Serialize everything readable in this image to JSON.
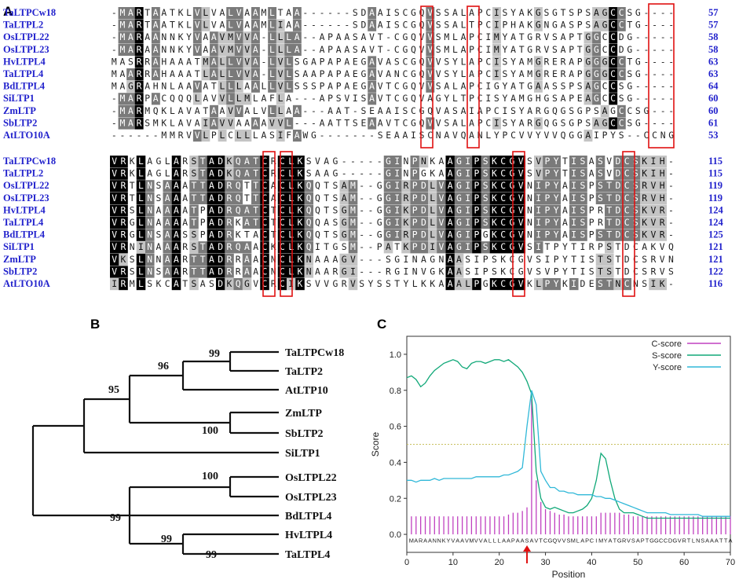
{
  "panels": {
    "a": "A",
    "b": "B",
    "c": "C"
  },
  "alignment": {
    "colors": {
      "identical": "#000000",
      "similar": "#7a7a7a",
      "weak": "#c4c4c4",
      "box": "#e01010"
    },
    "blocks": [
      {
        "names": [
          "TaLTPCw18",
          "TaLTPL2",
          "OsLTPL22",
          "OsLTPL23",
          "HvLTPL4",
          "TaLTPL4",
          "BdLTPL4",
          "SiLTP1",
          "ZmLTP",
          "SbLTP2",
          "AtLTO10A"
        ],
        "ends": [
          "57",
          "57",
          "58",
          "58",
          "63",
          "63",
          "64",
          "60",
          "60",
          "61",
          "53"
        ],
        "seqs": [
          "-MARTAATKLVLVALVAAMLTAA------SDAAISCGQVSSALAPCISYAKGSGTSPSAGCCSG",
          "-MARTAATKLVLVALVAAMLIAA------SDAAISCGQVSSALTPCIPHAKGNGASPSAGCCTG",
          "-MARAANNKYVAAVMVVA-LLLA--APAASAVT-CGQVVSMLAPCIMYATGRVSAPTGGCCDG",
          "-MARAANNKYVAAVMVVA-LLLA--APAASAVT-CGQVVSMLAPCIMYATGRVSAPTGGCCDG",
          "MASRRAHAAATMALLVVA-LVLSGAPAPAEGAVASCGQVVSYLAPCISYAMGRERAPGGGCCTG",
          "MAARRAHAAATLALLVVA-LVLSAAPAPAEGAVANCGQVVSYLAPCISYAMGRERAPGGGCCSG",
          "MAGRAHNLAAVATLLLAALLVLSSSPAPAEGAVTCGQVVSALAPCIGYATGAASSPSAGCCSG",
          "-MARPACQQQLAVVLLMLAFLA---APSVISAVTCGQVAGYLTPCISYAMGHGSAPEAGCCSG",
          "-MARMQKLAVATAAVVALVLLAA---AAT-SEAAISCGQVASAIAPCISYARGQGSGPSAGCCSG",
          "-MARSMKLAVAIAVVAAAAVVL---AATTSEAAVTCGQVVSALAPCISYARGQGSGPSAGCCSG",
          "------MMRVVLPLCLLLASIFAWG-------SEAAISCNAVQANLYPCVVYVVQGGAIPYS--CCNG"
        ]
      },
      {
        "names": [
          "TaLTPCw18",
          "TaLTPL2",
          "OsLTPL22",
          "OsLTPL23",
          "HvLTPL4",
          "TaLTPL4",
          "BdLTPL4",
          "SiLTP1",
          "ZmLTP",
          "SbLTP2",
          "AtLTO10A"
        ],
        "ends": [
          "115",
          "115",
          "119",
          "119",
          "124",
          "124",
          "125",
          "121",
          "121",
          "122",
          "116"
        ],
        "seqs": [
          "VRKLAGLARSTADKQATCRCLKSVAG-----GINPNKAAGIPSKCGVSVPYTISASVDCSKIH",
          "VRKLAGLARSTADKQATCRCLKSAAG-----GINPGKAAGIPSKCGVSVPYTISASVDCSKIH",
          "VRTLNSAAATTADRQTTCACLKQQTSAM--GGIRPDLVAGIPSKCGVNIPYAISPSTDCSRVH",
          "VRTLNSAAATTADRQTTCACLKQQTSAM--GGIRPDLVAGIPSKCGVNIPYAISPSTDCSRVH",
          "VRSLNAAAATPADRQATCTCLKQQTSGM--GGIKPDLVAGIPSKCGVNIPYAISPRTDCSKVR",
          "VRGLNAAAATPADRKATCTCLKQQASGM--GGIKPDLVAGIPSKCGVNIPYAISPRTDCSKVR",
          "VRGLNSAASSPADRKTACTCLKQQTSGM--GGIRPDLVAGIPGKCGVNIPYAISPSTDCSKVR",
          "VRNINAAARSTADRQAACKCLKQITGSM--PATKPDIVAGIPSKCGVSITPYTIRPSTDCAKVQ",
          "VKSLNNAARTTADRRAACNCLKNAAAGV---SGINAGNAASIPSKCGVSIPYTISTSTDCSRVN",
          "VRSLNSAARTTADRRAACNCLKNAARGI---RGINVGKAASIPSKCGVSVPYTISTSTDCSRVS",
          "IRMLSKCATSASDKQGVCRCIKSVVGRVSYSSTYLKKAAALPGKCGVKLPYKIDESTNCNSIK"
        ]
      }
    ]
  },
  "tree": {
    "leaves": [
      "TaLTPCw18",
      "TaLTP2",
      "AtLTP10",
      "ZmLTP",
      "SbLTP2",
      "SiLTP1",
      "OsLTPL22",
      "OsLTPL23",
      "BdLTPL4",
      "HvLTPL4",
      "TaLTPL4"
    ],
    "highlight_leaf": "OsLTPL23",
    "highlight_color": "#e01010",
    "bootstrap": [
      "99",
      "96",
      "95",
      "100",
      "100",
      "99",
      "99",
      "99"
    ]
  },
  "chart_data": {
    "type": "line",
    "title": "",
    "xlabel": "Position",
    "ylabel": "Score",
    "xlim": [
      0,
      70
    ],
    "ylim": [
      -0.1,
      1.1
    ],
    "xticks": [
      "0",
      "10",
      "20",
      "30",
      "40",
      "50",
      "60",
      "70"
    ],
    "yticks": [
      "0.0",
      "0.2",
      "0.4",
      "0.6",
      "0.8",
      "1.0"
    ],
    "threshold": 0.5,
    "legend_position": "top-right",
    "sequence_text": "MARAANNKYVAAVMVVALLLAAPAASAVTCGQVVSMLAPCIMYATGRVSAPTGGCCDGVRTLNSAAATTA",
    "arrow_position": 26,
    "series": [
      {
        "name": "C-score",
        "color": "#c040c0",
        "x": [
          1,
          2,
          3,
          4,
          5,
          6,
          7,
          8,
          9,
          10,
          11,
          12,
          13,
          14,
          15,
          16,
          17,
          18,
          19,
          20,
          21,
          22,
          23,
          24,
          25,
          26,
          27,
          28,
          29,
          30,
          31,
          32,
          33,
          34,
          35,
          36,
          37,
          38,
          39,
          40,
          41,
          42,
          43,
          44,
          45,
          46,
          47,
          48,
          49,
          50,
          51,
          52,
          53,
          54,
          55,
          56,
          57,
          58,
          59,
          60,
          61,
          62,
          63,
          64,
          65,
          66,
          67,
          68,
          69,
          70
        ],
        "values": [
          0.1,
          0.1,
          0.1,
          0.1,
          0.1,
          0.1,
          0.1,
          0.1,
          0.1,
          0.1,
          0.1,
          0.1,
          0.1,
          0.1,
          0.1,
          0.1,
          0.1,
          0.1,
          0.1,
          0.1,
          0.1,
          0.11,
          0.12,
          0.12,
          0.13,
          0.15,
          0.75,
          0.3,
          0.18,
          0.14,
          0.13,
          0.12,
          0.11,
          0.11,
          0.1,
          0.1,
          0.1,
          0.1,
          0.1,
          0.1,
          0.1,
          0.12,
          0.12,
          0.12,
          0.12,
          0.12,
          0.11,
          0.11,
          0.1,
          0.1,
          0.1,
          0.1,
          0.1,
          0.1,
          0.1,
          0.1,
          0.1,
          0.1,
          0.1,
          0.1,
          0.1,
          0.1,
          0.1,
          0.1,
          0.1,
          0.1,
          0.1,
          0.1,
          0.1,
          0.1
        ]
      },
      {
        "name": "S-score",
        "color": "#10a878",
        "x": [
          0,
          1,
          2,
          3,
          4,
          5,
          6,
          7,
          8,
          9,
          10,
          11,
          12,
          13,
          14,
          15,
          16,
          17,
          18,
          19,
          20,
          21,
          22,
          23,
          24,
          25,
          26,
          27,
          28,
          29,
          30,
          31,
          32,
          33,
          34,
          35,
          36,
          37,
          38,
          39,
          40,
          41,
          42,
          43,
          44,
          45,
          46,
          47,
          48,
          49,
          50,
          51,
          52,
          53,
          54,
          55,
          56,
          57,
          58,
          59,
          60,
          61,
          62,
          63,
          64,
          65,
          66,
          67,
          68,
          69,
          70
        ],
        "values": [
          0.87,
          0.88,
          0.86,
          0.82,
          0.84,
          0.88,
          0.91,
          0.93,
          0.95,
          0.96,
          0.97,
          0.96,
          0.93,
          0.92,
          0.95,
          0.96,
          0.96,
          0.95,
          0.96,
          0.97,
          0.97,
          0.96,
          0.97,
          0.95,
          0.93,
          0.9,
          0.85,
          0.78,
          0.35,
          0.2,
          0.15,
          0.14,
          0.15,
          0.14,
          0.13,
          0.12,
          0.12,
          0.13,
          0.14,
          0.16,
          0.2,
          0.3,
          0.45,
          0.42,
          0.3,
          0.2,
          0.14,
          0.12,
          0.12,
          0.12,
          0.11,
          0.1,
          0.09,
          0.09,
          0.09,
          0.09,
          0.09,
          0.09,
          0.09,
          0.09,
          0.09,
          0.09,
          0.09,
          0.09,
          0.09,
          0.09,
          0.09,
          0.09,
          0.09,
          0.09,
          0.09
        ]
      },
      {
        "name": "Y-score",
        "color": "#30b8d8",
        "x": [
          0,
          1,
          2,
          3,
          4,
          5,
          6,
          7,
          8,
          9,
          10,
          11,
          12,
          13,
          14,
          15,
          16,
          17,
          18,
          19,
          20,
          21,
          22,
          23,
          24,
          25,
          26,
          27,
          28,
          29,
          30,
          31,
          32,
          33,
          34,
          35,
          36,
          37,
          38,
          39,
          40,
          41,
          42,
          43,
          44,
          45,
          46,
          47,
          48,
          49,
          50,
          51,
          52,
          53,
          54,
          55,
          56,
          57,
          58,
          59,
          60,
          61,
          62,
          63,
          64,
          65,
          66,
          67,
          68,
          69,
          70
        ],
        "values": [
          0.3,
          0.3,
          0.29,
          0.3,
          0.3,
          0.3,
          0.31,
          0.3,
          0.31,
          0.31,
          0.31,
          0.31,
          0.31,
          0.31,
          0.31,
          0.32,
          0.32,
          0.32,
          0.32,
          0.32,
          0.32,
          0.33,
          0.33,
          0.34,
          0.35,
          0.37,
          0.6,
          0.8,
          0.72,
          0.35,
          0.3,
          0.26,
          0.26,
          0.24,
          0.24,
          0.23,
          0.23,
          0.22,
          0.22,
          0.22,
          0.22,
          0.21,
          0.21,
          0.2,
          0.2,
          0.19,
          0.18,
          0.17,
          0.16,
          0.15,
          0.14,
          0.13,
          0.12,
          0.12,
          0.12,
          0.12,
          0.12,
          0.11,
          0.11,
          0.11,
          0.11,
          0.11,
          0.11,
          0.11,
          0.1,
          0.1,
          0.1,
          0.1,
          0.1,
          0.1,
          0.1
        ]
      }
    ]
  }
}
